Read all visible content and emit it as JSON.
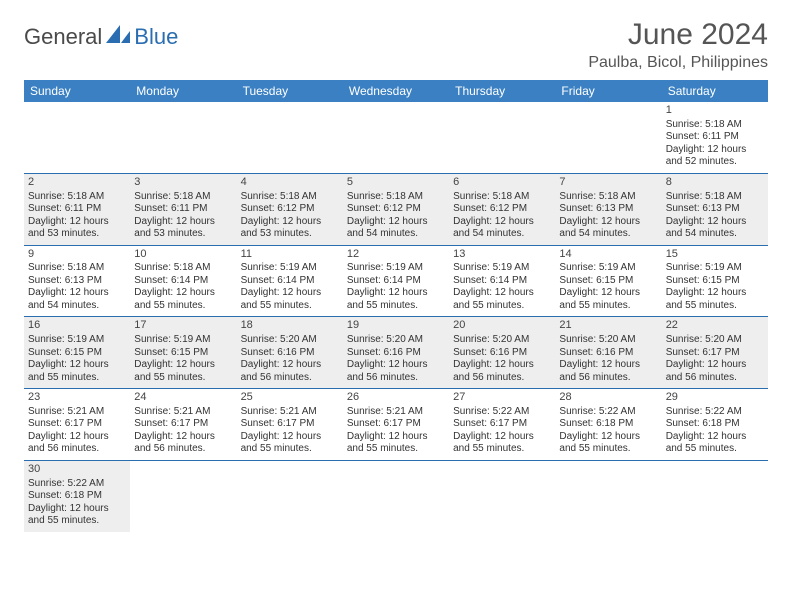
{
  "brand": {
    "part1": "General",
    "part2": "Blue"
  },
  "title": "June 2024",
  "location": "Paulba, Bicol, Philippines",
  "colors": {
    "header_bg": "#3a80c3",
    "header_fg": "#ffffff",
    "row_border": "#2a6db0",
    "row_alt_bg": "#eeeeee",
    "text": "#333333",
    "brand_gray": "#4a4a4a",
    "brand_blue": "#2a6db0"
  },
  "weekdays": [
    "Sunday",
    "Monday",
    "Tuesday",
    "Wednesday",
    "Thursday",
    "Friday",
    "Saturday"
  ],
  "weeks": [
    [
      null,
      null,
      null,
      null,
      null,
      null,
      {
        "d": "1",
        "sr": "5:18 AM",
        "ss": "6:11 PM",
        "dl": "12 hours and 52 minutes."
      }
    ],
    [
      {
        "d": "2",
        "sr": "5:18 AM",
        "ss": "6:11 PM",
        "dl": "12 hours and 53 minutes."
      },
      {
        "d": "3",
        "sr": "5:18 AM",
        "ss": "6:11 PM",
        "dl": "12 hours and 53 minutes."
      },
      {
        "d": "4",
        "sr": "5:18 AM",
        "ss": "6:12 PM",
        "dl": "12 hours and 53 minutes."
      },
      {
        "d": "5",
        "sr": "5:18 AM",
        "ss": "6:12 PM",
        "dl": "12 hours and 54 minutes."
      },
      {
        "d": "6",
        "sr": "5:18 AM",
        "ss": "6:12 PM",
        "dl": "12 hours and 54 minutes."
      },
      {
        "d": "7",
        "sr": "5:18 AM",
        "ss": "6:13 PM",
        "dl": "12 hours and 54 minutes."
      },
      {
        "d": "8",
        "sr": "5:18 AM",
        "ss": "6:13 PM",
        "dl": "12 hours and 54 minutes."
      }
    ],
    [
      {
        "d": "9",
        "sr": "5:18 AM",
        "ss": "6:13 PM",
        "dl": "12 hours and 54 minutes."
      },
      {
        "d": "10",
        "sr": "5:18 AM",
        "ss": "6:14 PM",
        "dl": "12 hours and 55 minutes."
      },
      {
        "d": "11",
        "sr": "5:19 AM",
        "ss": "6:14 PM",
        "dl": "12 hours and 55 minutes."
      },
      {
        "d": "12",
        "sr": "5:19 AM",
        "ss": "6:14 PM",
        "dl": "12 hours and 55 minutes."
      },
      {
        "d": "13",
        "sr": "5:19 AM",
        "ss": "6:14 PM",
        "dl": "12 hours and 55 minutes."
      },
      {
        "d": "14",
        "sr": "5:19 AM",
        "ss": "6:15 PM",
        "dl": "12 hours and 55 minutes."
      },
      {
        "d": "15",
        "sr": "5:19 AM",
        "ss": "6:15 PM",
        "dl": "12 hours and 55 minutes."
      }
    ],
    [
      {
        "d": "16",
        "sr": "5:19 AM",
        "ss": "6:15 PM",
        "dl": "12 hours and 55 minutes."
      },
      {
        "d": "17",
        "sr": "5:19 AM",
        "ss": "6:15 PM",
        "dl": "12 hours and 55 minutes."
      },
      {
        "d": "18",
        "sr": "5:20 AM",
        "ss": "6:16 PM",
        "dl": "12 hours and 56 minutes."
      },
      {
        "d": "19",
        "sr": "5:20 AM",
        "ss": "6:16 PM",
        "dl": "12 hours and 56 minutes."
      },
      {
        "d": "20",
        "sr": "5:20 AM",
        "ss": "6:16 PM",
        "dl": "12 hours and 56 minutes."
      },
      {
        "d": "21",
        "sr": "5:20 AM",
        "ss": "6:16 PM",
        "dl": "12 hours and 56 minutes."
      },
      {
        "d": "22",
        "sr": "5:20 AM",
        "ss": "6:17 PM",
        "dl": "12 hours and 56 minutes."
      }
    ],
    [
      {
        "d": "23",
        "sr": "5:21 AM",
        "ss": "6:17 PM",
        "dl": "12 hours and 56 minutes."
      },
      {
        "d": "24",
        "sr": "5:21 AM",
        "ss": "6:17 PM",
        "dl": "12 hours and 56 minutes."
      },
      {
        "d": "25",
        "sr": "5:21 AM",
        "ss": "6:17 PM",
        "dl": "12 hours and 55 minutes."
      },
      {
        "d": "26",
        "sr": "5:21 AM",
        "ss": "6:17 PM",
        "dl": "12 hours and 55 minutes."
      },
      {
        "d": "27",
        "sr": "5:22 AM",
        "ss": "6:17 PM",
        "dl": "12 hours and 55 minutes."
      },
      {
        "d": "28",
        "sr": "5:22 AM",
        "ss": "6:18 PM",
        "dl": "12 hours and 55 minutes."
      },
      {
        "d": "29",
        "sr": "5:22 AM",
        "ss": "6:18 PM",
        "dl": "12 hours and 55 minutes."
      }
    ],
    [
      {
        "d": "30",
        "sr": "5:22 AM",
        "ss": "6:18 PM",
        "dl": "12 hours and 55 minutes."
      },
      null,
      null,
      null,
      null,
      null,
      null
    ]
  ],
  "labels": {
    "sunrise": "Sunrise: ",
    "sunset": "Sunset: ",
    "daylight": "Daylight: "
  }
}
